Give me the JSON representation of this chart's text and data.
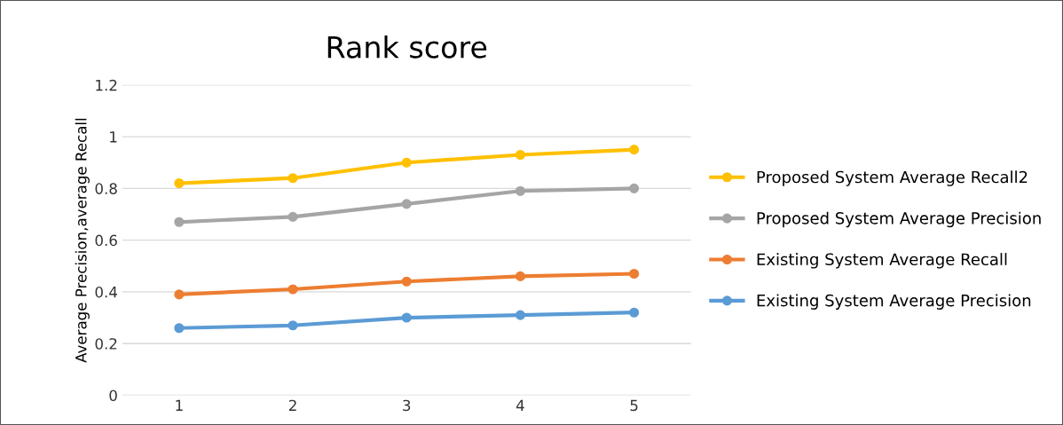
{
  "chart_data": {
    "type": "line",
    "title": "Rank score",
    "ylabel": "Average Precision,average Recall",
    "categories": [
      "1",
      "2",
      "3",
      "4",
      "5"
    ],
    "series": [
      {
        "name": "Proposed System Average Recall2",
        "color": "#ffc000",
        "values": [
          0.82,
          0.84,
          0.9,
          0.93,
          0.95
        ]
      },
      {
        "name": "Proposed System Average Precision",
        "color": "#a5a5a5",
        "values": [
          0.67,
          0.69,
          0.74,
          0.79,
          0.8
        ]
      },
      {
        "name": "Existing System Average Recall",
        "color": "#ed7d31",
        "values": [
          0.39,
          0.41,
          0.44,
          0.46,
          0.47
        ]
      },
      {
        "name": "Existing System Average Precision",
        "color": "#5b9bd5",
        "values": [
          0.26,
          0.27,
          0.3,
          0.31,
          0.32
        ]
      }
    ],
    "ylim": [
      0,
      1.2
    ],
    "yticks": [
      0,
      0.2,
      0.4,
      0.6,
      0.8,
      1,
      1.2
    ],
    "grid": "y",
    "legend": "right",
    "marker": "circle",
    "line_style": "solid"
  }
}
